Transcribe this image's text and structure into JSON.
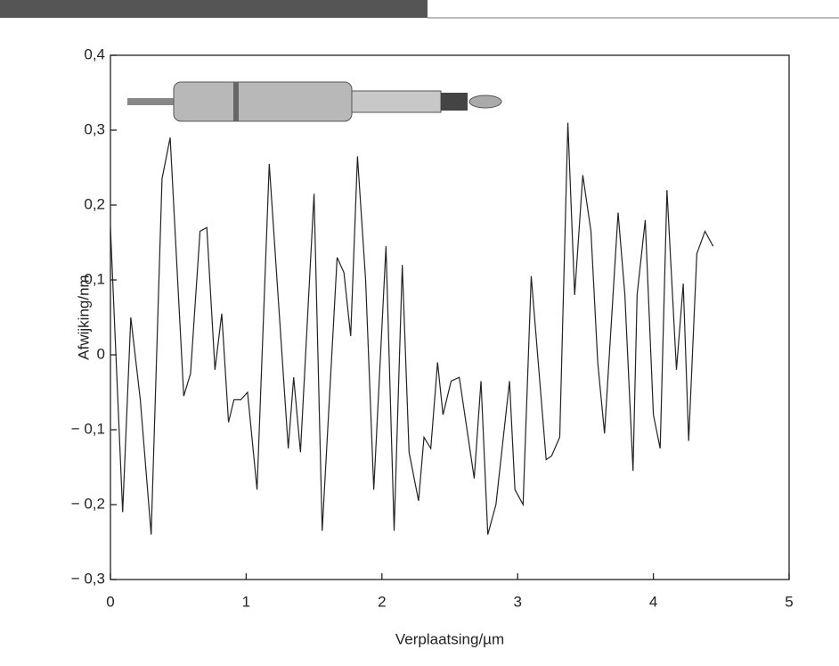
{
  "chart_data": {
    "type": "line",
    "xlabel": "Verplaatsing/µm",
    "ylabel": "Afwijking/nm",
    "x": [
      0.0,
      0.09,
      0.15,
      0.22,
      0.3,
      0.38,
      0.44,
      0.54,
      0.59,
      0.66,
      0.71,
      0.77,
      0.82,
      0.87,
      0.91,
      0.96,
      1.01,
      1.08,
      1.17,
      1.31,
      1.35,
      1.4,
      1.5,
      1.56,
      1.67,
      1.72,
      1.77,
      1.82,
      1.88,
      1.94,
      2.03,
      2.09,
      2.15,
      2.2,
      2.27,
      2.31,
      2.36,
      2.41,
      2.45,
      2.51,
      2.57,
      2.68,
      2.73,
      2.78,
      2.84,
      2.94,
      2.98,
      3.04,
      3.1,
      3.21,
      3.25,
      3.31,
      3.37,
      3.42,
      3.48,
      3.54,
      3.59,
      3.64,
      3.74,
      3.79,
      3.85,
      3.88,
      3.94,
      4.0,
      4.05,
      4.1,
      4.17,
      4.22,
      4.26,
      4.32,
      4.38,
      4.44
    ],
    "values": [
      0.17,
      -0.21,
      0.05,
      -0.06,
      -0.24,
      0.235,
      0.29,
      -0.055,
      -0.025,
      0.165,
      0.17,
      -0.02,
      0.055,
      -0.09,
      -0.06,
      -0.06,
      -0.05,
      -0.18,
      0.255,
      -0.125,
      -0.03,
      -0.13,
      0.215,
      -0.235,
      0.13,
      0.11,
      0.025,
      0.265,
      0.1,
      -0.18,
      0.145,
      -0.235,
      0.12,
      -0.13,
      -0.195,
      -0.11,
      -0.125,
      -0.01,
      -0.08,
      -0.035,
      -0.03,
      -0.165,
      -0.035,
      -0.24,
      -0.2,
      -0.035,
      -0.18,
      -0.2,
      0.105,
      -0.14,
      -0.135,
      -0.11,
      0.31,
      0.08,
      0.24,
      0.165,
      -0.01,
      -0.105,
      0.19,
      0.08,
      -0.155,
      0.08,
      0.18,
      -0.08,
      -0.125,
      0.22,
      -0.02,
      0.095,
      -0.115,
      0.135,
      0.165,
      0.145
    ],
    "color": "#222222",
    "xlim": [
      0,
      5
    ],
    "xticks": [
      0,
      1,
      2,
      3,
      4,
      5
    ],
    "ylim": [
      -0.3,
      0.4
    ],
    "yticks": [
      {
        "value": -0.3,
        "label": "− 0,3"
      },
      {
        "value": -0.2,
        "label": "− 0,2"
      },
      {
        "value": -0.1,
        "label": "− 0,1"
      },
      0,
      {
        "value": 0.1,
        "label": "0,1"
      },
      {
        "value": 0.2,
        "label": "0,2"
      },
      {
        "value": 0.3,
        "label": "0,3"
      },
      {
        "value": 0.4,
        "label": "0,4"
      }
    ]
  }
}
